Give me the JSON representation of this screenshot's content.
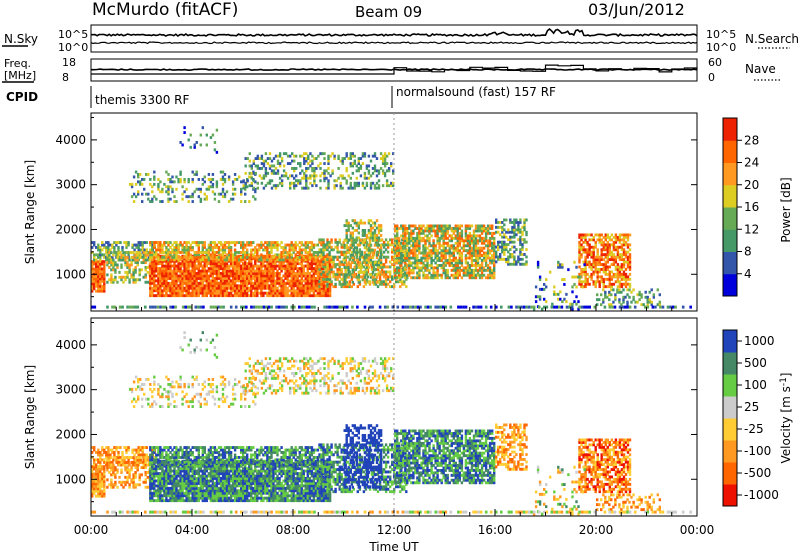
{
  "header": {
    "station": "McMurdo (fitACF)",
    "beam": "Beam 09",
    "date": "03/Jun/2012"
  },
  "noise_panel": {
    "left_label": "N.Sky",
    "left_ticks": [
      "10^5",
      "10^0"
    ],
    "right_ticks": [
      "10^5",
      "10^0"
    ],
    "right_label": "N.Search"
  },
  "freq_panel": {
    "left_label_1": "Freq.",
    "left_label_2": "[MHz]",
    "left_ticks": [
      "18",
      "8"
    ],
    "right_ticks": [
      "60",
      "0"
    ],
    "right_label": "Nave"
  },
  "cpid_panel": {
    "label": "CPID",
    "modes": [
      {
        "text": "themis 3300 RF",
        "start_hour": 0.0
      },
      {
        "text": "normalsound (fast) 157 RF",
        "start_hour": 12.0
      }
    ]
  },
  "colors": {
    "power_scale": [
      "#0000dd",
      "#3355aa",
      "#449966",
      "#66aa55",
      "#ddcc22",
      "#ff9922",
      "#ff6600",
      "#ee2200"
    ],
    "velocity_scale": [
      "#ee1100",
      "#ff6600",
      "#ff9922",
      "#ffcc33",
      "#cccccc",
      "#66cc44",
      "#448866",
      "#2244bb"
    ]
  },
  "chart_data": [
    {
      "type": "heatmap",
      "name": "power",
      "ylabel": "Slant Range [km]",
      "xlabel": "",
      "x_range_hours": [
        0,
        24
      ],
      "ylim": [
        180,
        4600
      ],
      "y_ticks": [
        1000,
        2000,
        3000,
        4000
      ],
      "colorbar_label": "Power [dB]",
      "colorbar_ticks": [
        "28",
        "24",
        "20",
        "16",
        "12",
        "8",
        "4"
      ],
      "colorbar_range": [
        0,
        32
      ]
    },
    {
      "type": "heatmap",
      "name": "velocity",
      "ylabel": "Slant Range [km]",
      "xlabel": "Time UT",
      "x_range_hours": [
        0,
        24
      ],
      "x_ticks": [
        "00:00",
        "04:00",
        "08:00",
        "12:00",
        "16:00",
        "20:00",
        "00:00"
      ],
      "ylim": [
        180,
        4600
      ],
      "y_ticks": [
        1000,
        2000,
        3000,
        4000
      ],
      "colorbar_label": "Velocity [m s^-1]",
      "colorbar_ticks": [
        "1000",
        "500",
        "100",
        "25",
        "-25",
        "-100",
        "-500",
        "-1000"
      ]
    }
  ],
  "chart_labels": {
    "y_ticks_text": [
      "1000",
      "2000",
      "3000",
      "4000"
    ],
    "power_ylabel": "Slant Range [km]",
    "vel_ylabel": "Slant Range [km]",
    "xlabel": "Time UT",
    "power_cb_label": "Power [dB]",
    "vel_cb_label": "Velocity",
    "vel_cb_unit": "[m s",
    "vel_cb_exp": "-1",
    "vel_cb_unit_end": "]"
  }
}
